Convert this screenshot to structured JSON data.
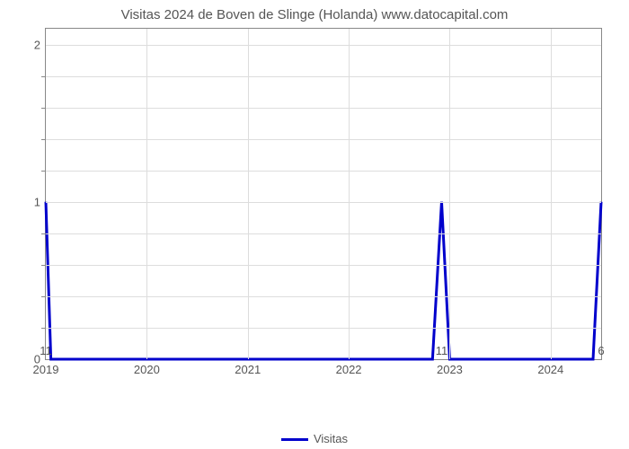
{
  "chart": {
    "type": "line",
    "title": "Visitas 2024 de Boven de Slinge (Holanda) www.datocapital.com",
    "title_fontsize": 15,
    "title_color": "#555555",
    "background_color": "#ffffff",
    "plot_border_color": "#888888",
    "grid_color": "#dddddd",
    "axis_label_color": "#555555",
    "axis_label_fontsize": 13,
    "line_color": "#0000cc",
    "line_width": 3,
    "xlim": [
      2019,
      2024.5
    ],
    "ylim": [
      0,
      2.1
    ],
    "y_major_ticks": [
      0,
      1,
      2
    ],
    "y_minor_tick_count_between": 4,
    "x_major_ticks": [
      2019,
      2020,
      2021,
      2022,
      2023,
      2024
    ],
    "data_points": [
      {
        "x": 2019.0,
        "y": 1,
        "label": "11"
      },
      {
        "x": 2019.05,
        "y": 0
      },
      {
        "x": 2022.83,
        "y": 0
      },
      {
        "x": 2022.92,
        "y": 1,
        "label": "11"
      },
      {
        "x": 2023.0,
        "y": 0
      },
      {
        "x": 2024.42,
        "y": 0
      },
      {
        "x": 2024.5,
        "y": 1,
        "label": "6"
      }
    ],
    "legend": {
      "label": "Visitas",
      "line_color": "#0000cc"
    }
  }
}
